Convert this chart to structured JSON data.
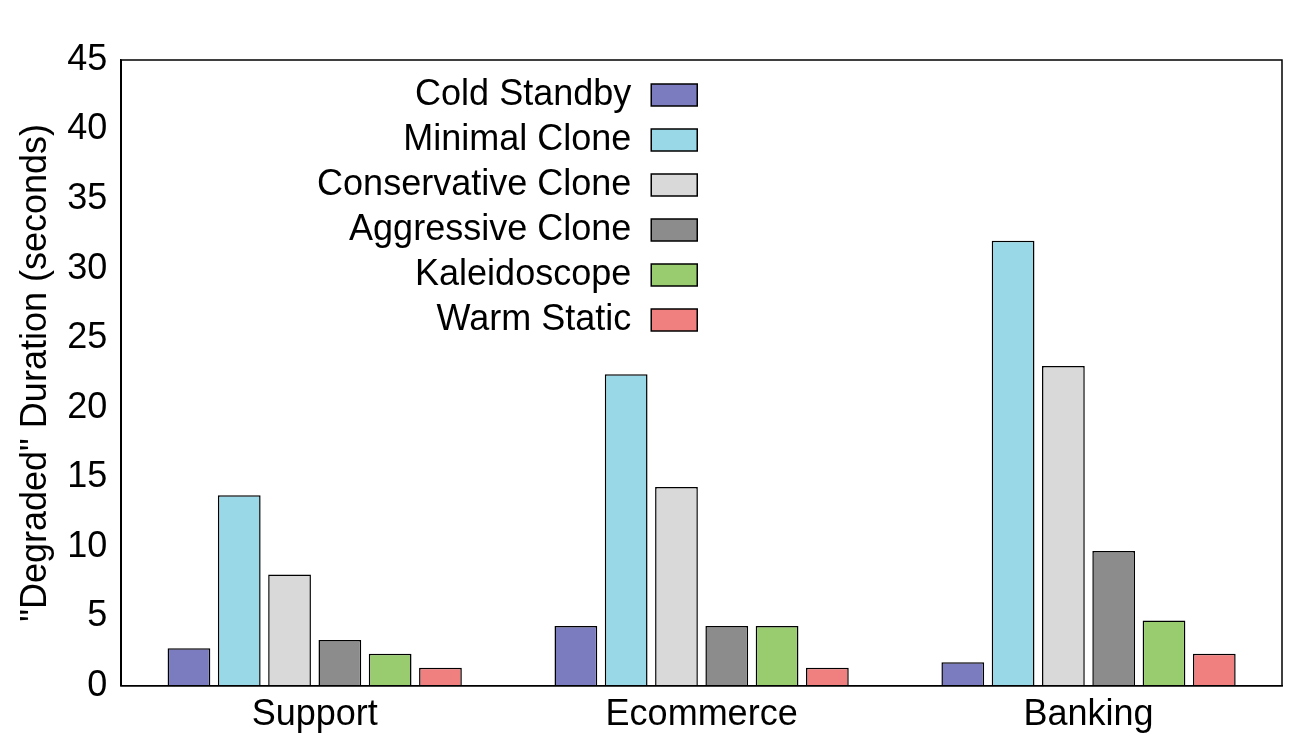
{
  "chart_data": {
    "type": "bar",
    "ylabel": "\"Degraded\" Duration (seconds)",
    "categories": [
      "Support",
      "Ecommerce",
      "Banking"
    ],
    "series": [
      {
        "name": "Cold Standby",
        "color": "#7b7bbf",
        "values": [
          2.7,
          4.3,
          1.7
        ]
      },
      {
        "name": "Minimal Clone",
        "color": "#99d8e6",
        "values": [
          13.7,
          22.4,
          32.0
        ]
      },
      {
        "name": "Conservative Clone",
        "color": "#d9d9d9",
        "values": [
          8.0,
          14.3,
          23.0
        ]
      },
      {
        "name": "Aggressive Clone",
        "color": "#8c8c8c",
        "values": [
          3.3,
          4.3,
          9.7
        ]
      },
      {
        "name": "Kaleidoscope",
        "color": "#99cc6e",
        "values": [
          2.3,
          4.3,
          4.7
        ]
      },
      {
        "name": "Warm Static",
        "color": "#f08080",
        "values": [
          1.3,
          1.3,
          2.3
        ]
      }
    ],
    "ylim": [
      0,
      45
    ],
    "yticks": [
      0,
      5,
      10,
      15,
      20,
      25,
      30,
      35,
      40,
      45
    ],
    "grid": false,
    "legend": "top left"
  }
}
